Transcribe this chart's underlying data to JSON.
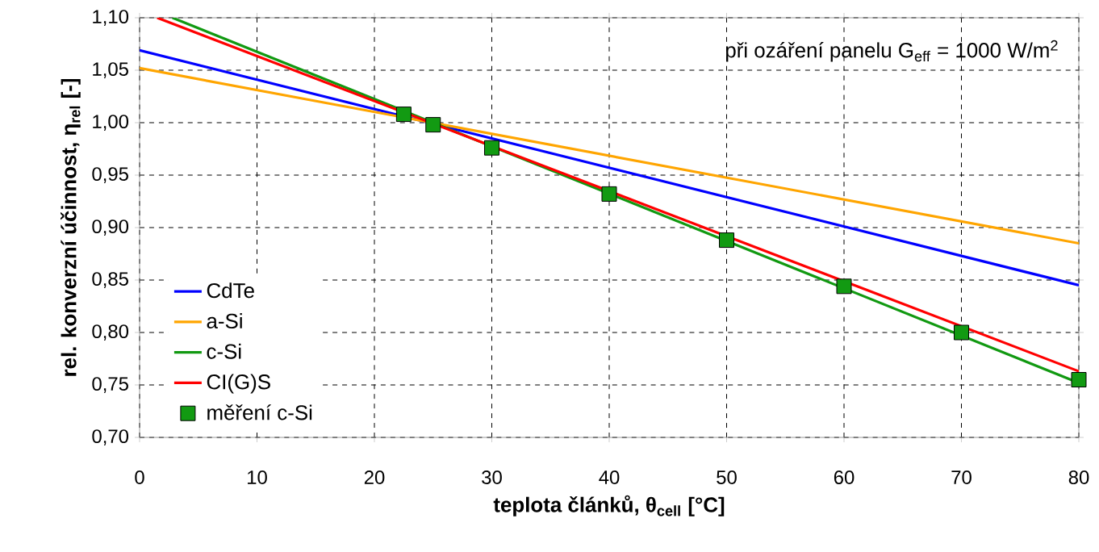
{
  "chart_data": {
    "type": "line",
    "xlabel": "teplota článků, θ$_{cell}$ [°C]",
    "ylabel": "rel. konverzní účinnost, η$_{rel}$ [-]",
    "annotations": [
      "při ozáření panelu G$_{eff}$ = 1000 W/m$^{2}$"
    ],
    "xlim": [
      0,
      80
    ],
    "xticks": [
      0,
      10,
      20,
      30,
      40,
      50,
      60,
      70,
      80
    ],
    "ylim": [
      0.7,
      1.1
    ],
    "yticks": [
      {
        "value": 0.7,
        "label": "0,70"
      },
      {
        "value": 0.75,
        "label": "0,75"
      },
      {
        "value": 0.8,
        "label": "0,80"
      },
      {
        "value": 0.85,
        "label": "0,85"
      },
      {
        "value": 0.9,
        "label": "0,90"
      },
      {
        "value": 0.95,
        "label": "0,95"
      },
      {
        "value": 1.0,
        "label": "1,00"
      },
      {
        "value": 1.05,
        "label": "1,05"
      },
      {
        "value": 1.1,
        "label": "1,10"
      }
    ],
    "grid": true,
    "legend": "bottom left",
    "line_style": "solid",
    "marker": "none",
    "series": [
      {
        "name": "CdTe",
        "color": "#0000ff",
        "x": [
          0,
          80
        ],
        "values": [
          1.069,
          0.845
        ]
      },
      {
        "name": "a-Si",
        "color": "#ffa500",
        "x": [
          0,
          80
        ],
        "values": [
          1.052,
          0.885
        ]
      },
      {
        "name": "c-Si",
        "color": "#119911",
        "x": [
          2.8,
          80
        ],
        "values": [
          1.1,
          0.752
        ]
      },
      {
        "name": "CI(G)S",
        "color": "#ff0000",
        "x": [
          1.5,
          80
        ],
        "values": [
          1.1,
          0.763
        ]
      },
      {
        "name": "měření c-Si",
        "type": "scatter",
        "marker": "square",
        "color": "#129a12",
        "x": [
          22.5,
          25,
          30,
          40,
          50,
          60,
          70,
          80
        ],
        "values": [
          1.008,
          0.998,
          0.976,
          0.932,
          0.888,
          0.844,
          0.8,
          0.755
        ]
      }
    ]
  }
}
